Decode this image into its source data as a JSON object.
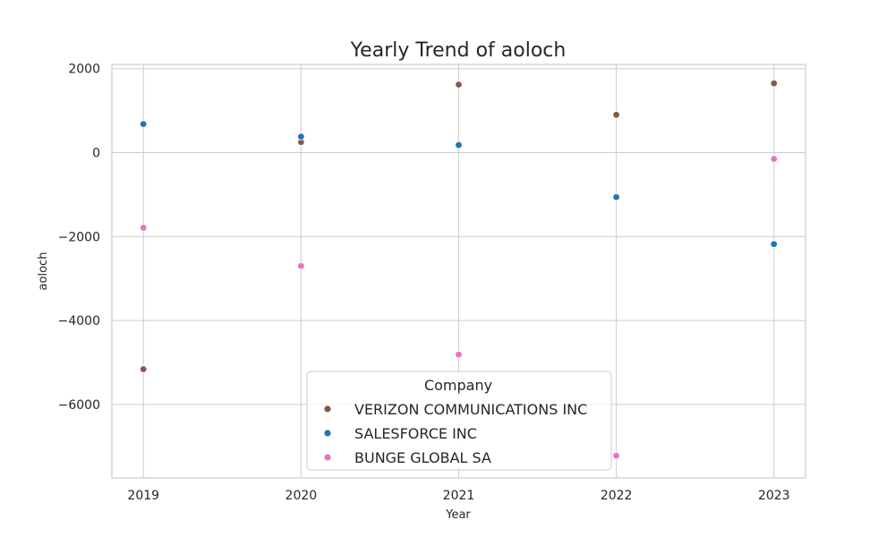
{
  "chart_data": {
    "type": "scatter",
    "title": "Yearly Trend of aoloch",
    "xlabel": "Year",
    "ylabel": "aoloch",
    "x": [
      2019,
      2020,
      2021,
      2022,
      2023
    ],
    "x_tick_labels": [
      "2019",
      "2020",
      "2021",
      "2022",
      "2023"
    ],
    "y_ticks": [
      2000,
      0,
      -2000,
      -4000,
      -6000
    ],
    "y_tick_labels": [
      "2000",
      "0",
      "−2000",
      "−4000",
      "−6000"
    ],
    "xlim": [
      2018.8,
      2023.2
    ],
    "ylim": [
      -7750,
      2100
    ],
    "grid": true,
    "legend": {
      "title": "Company",
      "placement": "lower-center"
    },
    "series": [
      {
        "name": "VERIZON COMMUNICATIONS INC",
        "color": "#8c564b",
        "values": [
          -5160,
          250,
          1620,
          900,
          1650
        ]
      },
      {
        "name": "SALESFORCE INC",
        "color": "#1f77b4",
        "values": [
          680,
          380,
          180,
          -1060,
          -2180
        ]
      },
      {
        "name": "BUNGE GLOBAL SA",
        "color": "#e377c2",
        "values": [
          -1790,
          -2700,
          -4810,
          -7220,
          -150
        ]
      }
    ]
  }
}
